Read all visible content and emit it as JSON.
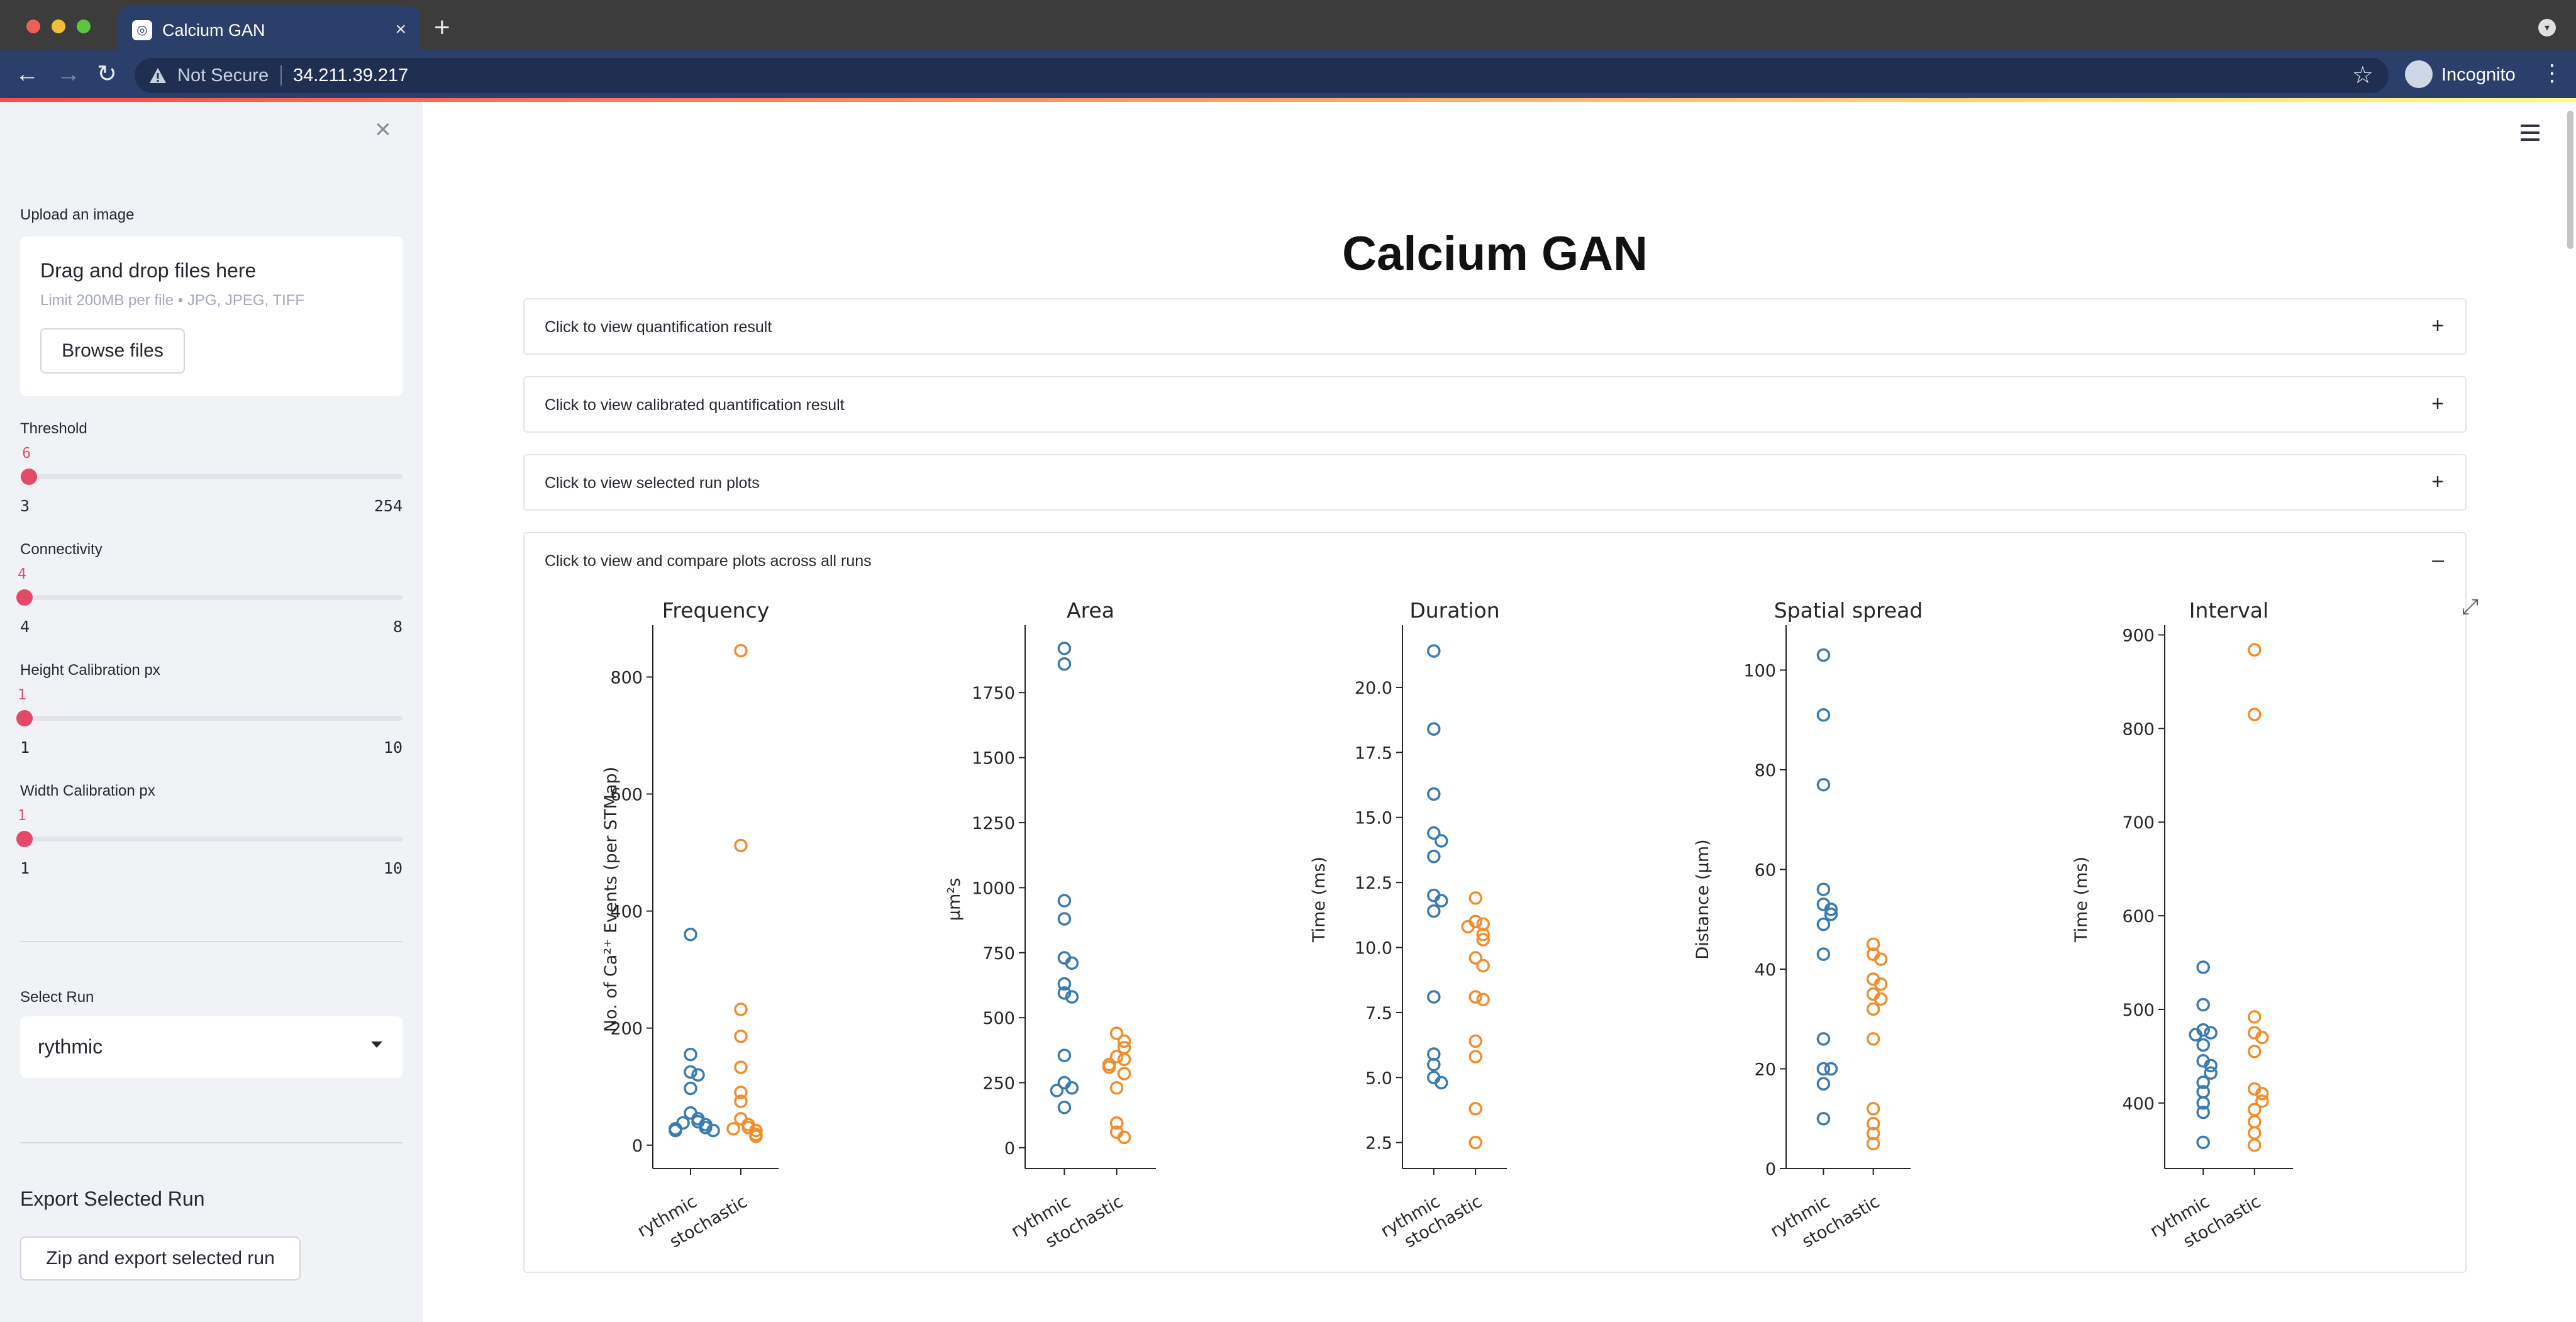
{
  "browser": {
    "tab_title": "Calcium GAN",
    "tab_close": "×",
    "new_tab": "+",
    "not_secure": "Not Secure",
    "url": "34.211.39.217",
    "profile_label": "Incognito",
    "icons": [
      "back-icon",
      "forward-icon",
      "reload-icon",
      "warning-icon",
      "star-icon",
      "incognito-icon",
      "menu-icon"
    ]
  },
  "sidebar": {
    "close": "×",
    "upload": {
      "label": "Upload an image",
      "drop_title": "Drag and drop files here",
      "limit": "Limit 200MB per file • JPG, JPEG, TIFF",
      "browse": "Browse files"
    },
    "sliders": [
      {
        "title": "Threshold",
        "value": "6",
        "min": "3",
        "max": "254",
        "fraction": 0.012
      },
      {
        "title": "Connectivity",
        "value": "4",
        "min": "4",
        "max": "8",
        "fraction": 0.0
      },
      {
        "title": "Height Calibration px",
        "value": "1",
        "min": "1",
        "max": "10",
        "fraction": 0.0
      },
      {
        "title": "Width Calibration px",
        "value": "1",
        "min": "1",
        "max": "10",
        "fraction": 0.0
      }
    ],
    "select_run": {
      "label": "Select Run",
      "value": "rythmic"
    },
    "export": {
      "title": "Export Selected Run",
      "button": "Zip and export selected run"
    }
  },
  "main": {
    "title": "Calcium GAN",
    "expanders": [
      {
        "label": "Click to view quantification result",
        "sign": "+"
      },
      {
        "label": "Click to view calibrated quantification result",
        "sign": "+"
      },
      {
        "label": "Click to view selected run plots",
        "sign": "+"
      },
      {
        "label": "Click to view and compare plots across all runs",
        "sign": "–"
      }
    ]
  },
  "colors": {
    "rythmic": "#3a7bb0",
    "stochastic": "#ef8e2f",
    "accent": "#e24a68"
  },
  "chart_data": [
    {
      "type": "scatter",
      "title": "Frequency",
      "ylabel": "No. of Ca²⁺ Events (per STMap)",
      "categories": [
        "rythmic",
        "stochastic"
      ],
      "ylim": [
        -40,
        880
      ],
      "yticks": [
        0,
        200,
        400,
        600,
        800
      ],
      "series": [
        {
          "name": "rythmic",
          "values": [
            360,
            155,
            125,
            120,
            97,
            55,
            45,
            40,
            38,
            35,
            30,
            28,
            25,
            25
          ]
        },
        {
          "name": "stochastic",
          "values": [
            845,
            512,
            232,
            186,
            133,
            90,
            75,
            45,
            35,
            30,
            28,
            25,
            18,
            15
          ]
        }
      ]
    },
    {
      "type": "scatter",
      "title": "Area",
      "ylabel": "μm²s",
      "categories": [
        "rythmic",
        "stochastic"
      ],
      "ylim": [
        -80,
        1990
      ],
      "yticks": [
        0,
        250,
        500,
        750,
        1000,
        1250,
        1500,
        1750
      ],
      "series": [
        {
          "name": "rythmic",
          "values": [
            1920,
            1860,
            950,
            880,
            730,
            710,
            630,
            595,
            580,
            355,
            250,
            230,
            220,
            155
          ]
        },
        {
          "name": "stochastic",
          "values": [
            440,
            410,
            385,
            350,
            340,
            320,
            310,
            285,
            230,
            95,
            60,
            40
          ]
        }
      ]
    },
    {
      "type": "scatter",
      "title": "Duration",
      "ylabel": "Time (ms)",
      "categories": [
        "rythmic",
        "stochastic"
      ],
      "ylim": [
        1.5,
        22.2
      ],
      "yticks": [
        2.5,
        5.0,
        7.5,
        10.0,
        12.5,
        15.0,
        17.5,
        20.0
      ],
      "series": [
        {
          "name": "rythmic",
          "values": [
            21.4,
            18.4,
            15.9,
            14.4,
            14.1,
            13.5,
            12.0,
            11.8,
            11.4,
            8.1,
            5.9,
            5.5,
            5.0,
            4.8
          ]
        },
        {
          "name": "stochastic",
          "values": [
            11.9,
            11.0,
            10.9,
            10.8,
            10.5,
            10.3,
            9.6,
            9.3,
            8.1,
            8.0,
            6.4,
            5.8,
            3.8,
            2.5
          ]
        }
      ]
    },
    {
      "type": "scatter",
      "title": "Spatial spread",
      "ylabel": "Distance (μm)",
      "categories": [
        "rythmic",
        "stochastic"
      ],
      "ylim": [
        0,
        108
      ],
      "yticks": [
        0,
        20,
        40,
        60,
        80,
        100
      ],
      "series": [
        {
          "name": "rythmic",
          "values": [
            103,
            91,
            77,
            56,
            53,
            52,
            51,
            49,
            43,
            26,
            20,
            20,
            17,
            10
          ]
        },
        {
          "name": "stochastic",
          "values": [
            45,
            43,
            42,
            38,
            37,
            35,
            34,
            32,
            26,
            12,
            9,
            7,
            5
          ]
        }
      ]
    },
    {
      "type": "scatter",
      "title": "Interval",
      "ylabel": "Time (ms)",
      "categories": [
        "rythmic",
        "stochastic"
      ],
      "ylim": [
        330,
        905
      ],
      "yticks": [
        400,
        500,
        600,
        700,
        800,
        900
      ],
      "series": [
        {
          "name": "rythmic",
          "values": [
            545,
            505,
            478,
            475,
            473,
            462,
            445,
            440,
            432,
            422,
            412,
            400,
            390,
            358
          ]
        },
        {
          "name": "stochastic",
          "values": [
            884,
            815,
            492,
            475,
            470,
            455,
            415,
            410,
            402,
            393,
            380,
            368,
            355
          ]
        }
      ]
    }
  ]
}
